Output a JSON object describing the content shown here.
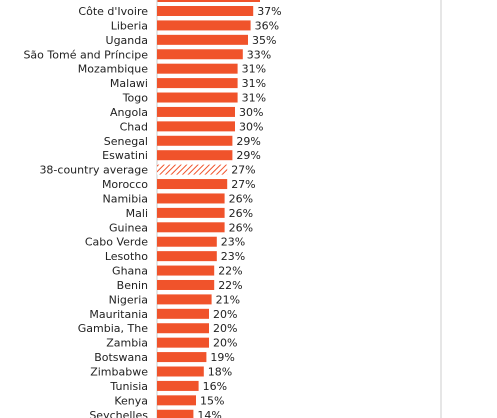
{
  "chart_data": {
    "type": "bar",
    "orientation": "horizontal",
    "categories": [
      "Côte d'Ivoire",
      "Liberia",
      "Uganda",
      "São Tomé and Príncipe",
      "Mozambique",
      "Malawi",
      "Togo",
      "Angola",
      "Chad",
      "Senegal",
      "Eswatini",
      "38-country average",
      "Morocco",
      "Namibia",
      "Mali",
      "Guinea",
      "Cabo Verde",
      "Lesotho",
      "Ghana",
      "Benin",
      "Nigeria",
      "Mauritania",
      "Gambia, The",
      "Zambia",
      "Botswana",
      "Zimbabwe",
      "Tunisia",
      "Kenya",
      "Seychelles"
    ],
    "values": [
      37,
      36,
      35,
      33,
      31,
      31,
      31,
      30,
      30,
      29,
      29,
      27,
      27,
      26,
      26,
      26,
      23,
      23,
      22,
      22,
      21,
      20,
      20,
      20,
      19,
      18,
      16,
      15,
      14
    ],
    "value_labels": [
      "37%",
      "36%",
      "35%",
      "33%",
      "31%",
      "31%",
      "31%",
      "30%",
      "30%",
      "29%",
      "29%",
      "27%",
      "27%",
      "26%",
      "26%",
      "26%",
      "23%",
      "23%",
      "22%",
      "22%",
      "21%",
      "20%",
      "20%",
      "20%",
      "19%",
      "18%",
      "16%",
      "15%",
      "14%"
    ],
    "highlight": "38-country average",
    "unit": "%",
    "xlim": [
      0,
      100
    ],
    "colors": {
      "bar": "#f0532b",
      "average_hatch": "#f0532b",
      "axis": "#cccccc"
    }
  }
}
